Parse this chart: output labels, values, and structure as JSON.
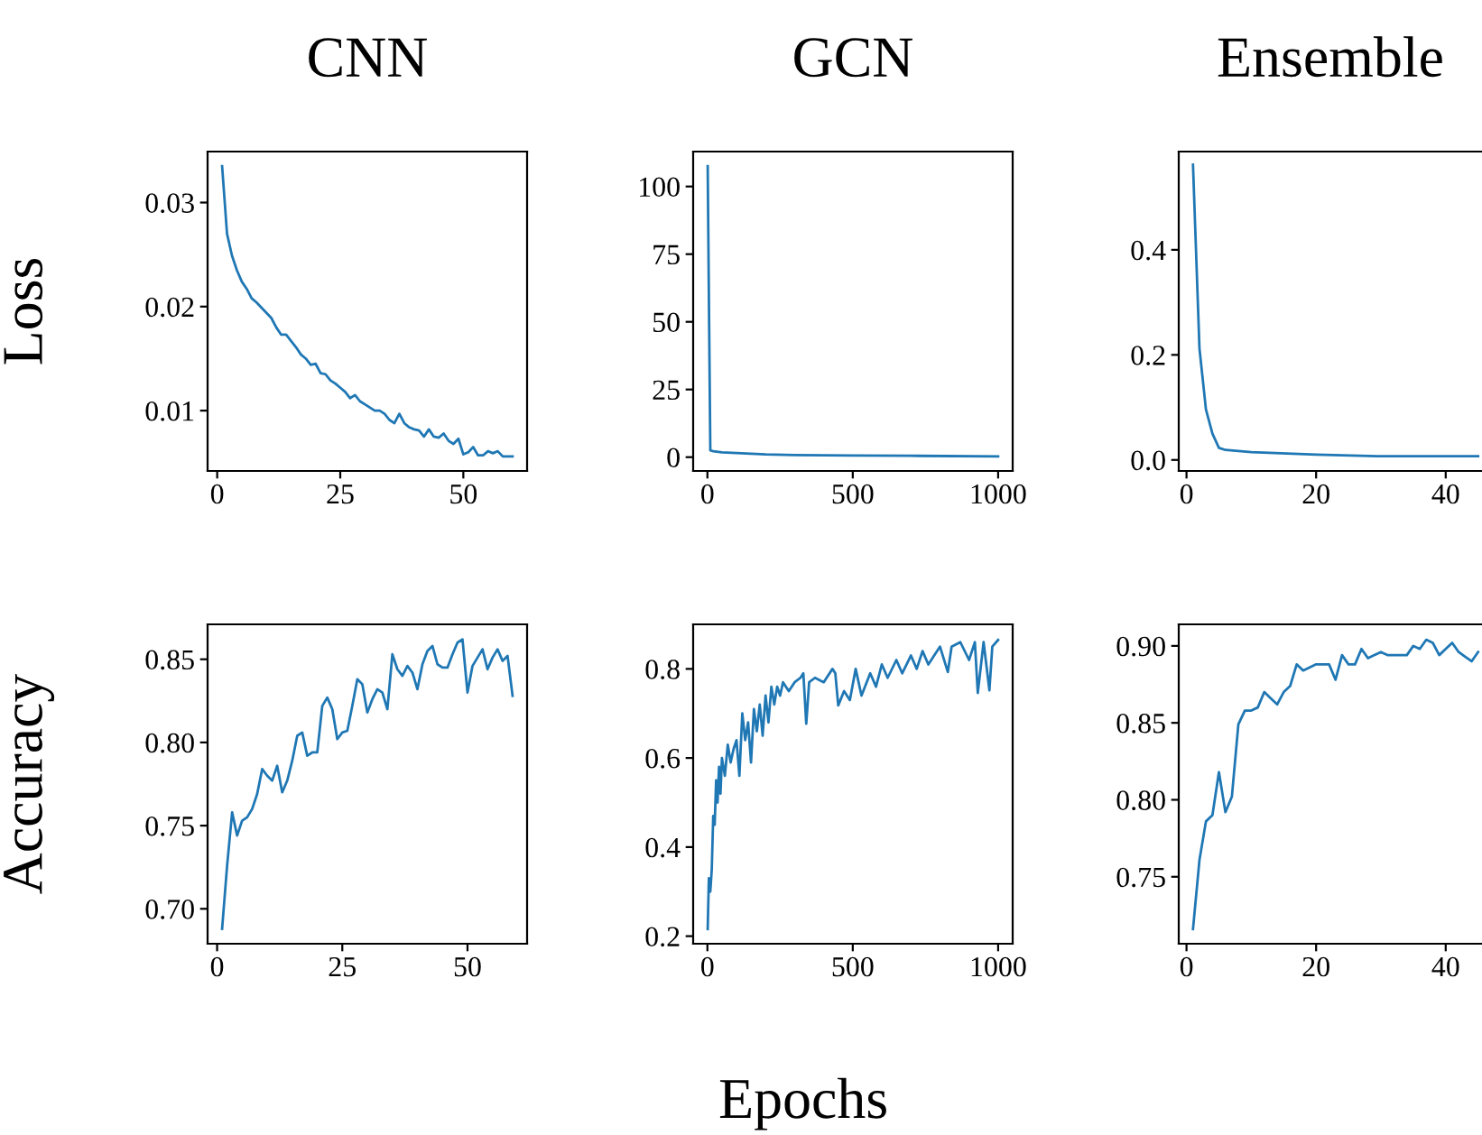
{
  "chart_data": [
    {
      "type": "line",
      "title": "CNN",
      "ylabel": "Loss",
      "xlim": [
        -1.95,
        62.95
      ],
      "ylim": [
        0.0042,
        0.0349
      ],
      "xticks": [
        0,
        25,
        50
      ],
      "yticks": [
        0.01,
        0.02,
        0.03
      ],
      "x": [
        1,
        2,
        3,
        4,
        5,
        6,
        7,
        8,
        9,
        10,
        11,
        12,
        13,
        14,
        15,
        16,
        17,
        18,
        19,
        20,
        21,
        22,
        23,
        24,
        25,
        26,
        27,
        28,
        29,
        30,
        31,
        32,
        33,
        34,
        35,
        36,
        37,
        38,
        39,
        40,
        41,
        42,
        43,
        44,
        45,
        46,
        47,
        48,
        49,
        50,
        51,
        52,
        53,
        54,
        55,
        56,
        57,
        58,
        59,
        60
      ],
      "series": [
        {
          "color": "#1f77b4",
          "values": [
            0.0335,
            0.027,
            0.0249,
            0.0235,
            0.0224,
            0.0217,
            0.0208,
            0.0204,
            0.0199,
            0.0194,
            0.0189,
            0.018,
            0.0173,
            0.0173,
            0.0167,
            0.0161,
            0.0154,
            0.015,
            0.0144,
            0.0145,
            0.0136,
            0.0135,
            0.0129,
            0.0126,
            0.0122,
            0.0118,
            0.0112,
            0.0115,
            0.0109,
            0.0106,
            0.0103,
            0.01,
            0.01,
            0.0097,
            0.0091,
            0.0088,
            0.0097,
            0.0088,
            0.0084,
            0.0082,
            0.0081,
            0.0075,
            0.0082,
            0.0075,
            0.0074,
            0.0078,
            0.0071,
            0.0068,
            0.0073,
            0.0058,
            0.006,
            0.0065,
            0.0057,
            0.0057,
            0.0061,
            0.0059,
            0.0061,
            0.0056,
            0.0056,
            0.0056
          ]
        }
      ]
    },
    {
      "type": "line",
      "title": "GCN",
      "xlim": [
        -49,
        1050
      ],
      "ylim": [
        -5.1,
        112.9
      ],
      "xticks": [
        0,
        500,
        1000
      ],
      "yticks": [
        0,
        25,
        50,
        75,
        100
      ],
      "x": [
        1,
        5,
        10,
        20,
        50,
        100,
        200,
        300,
        500,
        700,
        1000
      ],
      "series": [
        {
          "color": "#1f77b4",
          "values": [
            107.5,
            60,
            2.5,
            2.2,
            1.8,
            1.5,
            1.0,
            0.8,
            0.6,
            0.5,
            0.3
          ]
        }
      ]
    },
    {
      "type": "line",
      "title": "Ensemble",
      "xlim": [
        -1.2,
        45.6
      ],
      "ylim": [
        -0.021,
        0.587
      ],
      "xticks": [
        0,
        20,
        40
      ],
      "yticks": [
        {
          "value": 0,
          "label": "0.0"
        },
        0.2,
        0.4
      ],
      "x": [
        1,
        2,
        3,
        4,
        5,
        6,
        10,
        20,
        30,
        40,
        45
      ],
      "series": [
        {
          "color": "#1f77b4",
          "values": [
            0.562,
            0.212,
            0.096,
            0.05,
            0.023,
            0.019,
            0.015,
            0.01,
            0.007,
            0.007,
            0.007
          ]
        }
      ]
    },
    {
      "type": "line",
      "ylabel": "Accuracy",
      "xlim": [
        -1.9,
        61.9
      ],
      "ylim": [
        0.679,
        0.871
      ],
      "xticks": [
        0,
        25,
        50
      ],
      "yticks": [
        {
          "value": 0.7,
          "label": "0.70"
        },
        0.75,
        {
          "value": 0.8,
          "label": "0.80"
        },
        0.85
      ],
      "x": [
        1,
        2,
        3,
        4,
        5,
        6,
        7,
        8,
        9,
        10,
        11,
        12,
        13,
        14,
        15,
        16,
        17,
        18,
        19,
        20,
        21,
        22,
        23,
        24,
        25,
        26,
        27,
        28,
        29,
        30,
        31,
        32,
        33,
        34,
        35,
        36,
        37,
        38,
        39,
        40,
        41,
        42,
        43,
        44,
        45,
        46,
        47,
        48,
        49,
        50,
        51,
        52,
        53,
        54,
        55,
        56,
        57,
        58,
        59
      ],
      "series": [
        {
          "color": "#1f77b4",
          "values": [
            0.688,
            0.726,
            0.758,
            0.744,
            0.753,
            0.755,
            0.76,
            0.769,
            0.784,
            0.78,
            0.777,
            0.786,
            0.77,
            0.777,
            0.789,
            0.804,
            0.806,
            0.792,
            0.794,
            0.794,
            0.822,
            0.827,
            0.82,
            0.802,
            0.806,
            0.807,
            0.822,
            0.838,
            0.835,
            0.818,
            0.826,
            0.832,
            0.83,
            0.82,
            0.853,
            0.844,
            0.84,
            0.846,
            0.842,
            0.832,
            0.847,
            0.855,
            0.858,
            0.847,
            0.845,
            0.845,
            0.853,
            0.86,
            0.862,
            0.83,
            0.846,
            0.851,
            0.856,
            0.844,
            0.851,
            0.856,
            0.849,
            0.852,
            0.828
          ]
        }
      ]
    },
    {
      "type": "line",
      "xlabel": "Epochs",
      "xlim": [
        -49,
        1050
      ],
      "ylim": [
        0.183,
        0.9
      ],
      "xticks": [
        0,
        500,
        1000
      ],
      "yticks": [
        0.2,
        0.4,
        0.6,
        0.8
      ],
      "x": [
        1,
        5,
        10,
        15,
        20,
        25,
        30,
        35,
        40,
        45,
        50,
        60,
        70,
        80,
        90,
        100,
        110,
        120,
        130,
        140,
        150,
        160,
        170,
        180,
        190,
        200,
        210,
        220,
        230,
        240,
        250,
        260,
        280,
        300,
        320,
        330,
        340,
        350,
        370,
        400,
        430,
        440,
        450,
        470,
        490,
        510,
        530,
        560,
        580,
        600,
        620,
        650,
        670,
        700,
        720,
        740,
        760,
        780,
        800,
        827,
        840,
        870,
        900,
        920,
        930,
        950,
        970,
        980,
        1000
      ],
      "series": [
        {
          "color": "#1f77b4",
          "values": [
            0.216,
            0.33,
            0.3,
            0.35,
            0.47,
            0.45,
            0.55,
            0.5,
            0.58,
            0.52,
            0.6,
            0.56,
            0.63,
            0.59,
            0.62,
            0.64,
            0.56,
            0.7,
            0.64,
            0.68,
            0.59,
            0.71,
            0.66,
            0.72,
            0.65,
            0.74,
            0.68,
            0.76,
            0.72,
            0.76,
            0.74,
            0.77,
            0.75,
            0.77,
            0.78,
            0.79,
            0.677,
            0.77,
            0.78,
            0.77,
            0.8,
            0.79,
            0.718,
            0.75,
            0.73,
            0.8,
            0.74,
            0.79,
            0.76,
            0.81,
            0.78,
            0.82,
            0.79,
            0.83,
            0.8,
            0.84,
            0.81,
            0.83,
            0.85,
            0.793,
            0.85,
            0.86,
            0.82,
            0.86,
            0.746,
            0.86,
            0.752,
            0.85,
            0.865
          ]
        }
      ]
    },
    {
      "type": "line",
      "xlim": [
        -1.2,
        45.6
      ],
      "ylim": [
        0.7065,
        0.914
      ],
      "xticks": [
        0,
        20,
        40
      ],
      "yticks": [
        0.75,
        {
          "value": 0.8,
          "label": "0.80"
        },
        0.85,
        {
          "value": 0.9,
          "label": "0.90"
        }
      ],
      "x": [
        1,
        2,
        3,
        4,
        5,
        6,
        7,
        8,
        9,
        10,
        11,
        12,
        13,
        14,
        15,
        16,
        17,
        18,
        19,
        20,
        21,
        22,
        23,
        24,
        25,
        26,
        27,
        28,
        29,
        30,
        31,
        32,
        33,
        34,
        35,
        36,
        37,
        38,
        39,
        40,
        41,
        42,
        43,
        44,
        45
      ],
      "series": [
        {
          "color": "#1f77b4",
          "values": [
            0.716,
            0.761,
            0.786,
            0.79,
            0.818,
            0.792,
            0.802,
            0.849,
            0.858,
            0.858,
            0.86,
            0.87,
            0.866,
            0.862,
            0.87,
            0.874,
            0.888,
            0.884,
            0.886,
            0.888,
            0.888,
            0.888,
            0.878,
            0.894,
            0.888,
            0.888,
            0.898,
            0.892,
            0.894,
            0.896,
            0.894,
            0.894,
            0.894,
            0.894,
            0.9,
            0.898,
            0.904,
            0.902,
            0.894,
            0.898,
            0.902,
            0.896,
            0.893,
            0.89,
            0.896
          ]
        }
      ]
    }
  ]
}
